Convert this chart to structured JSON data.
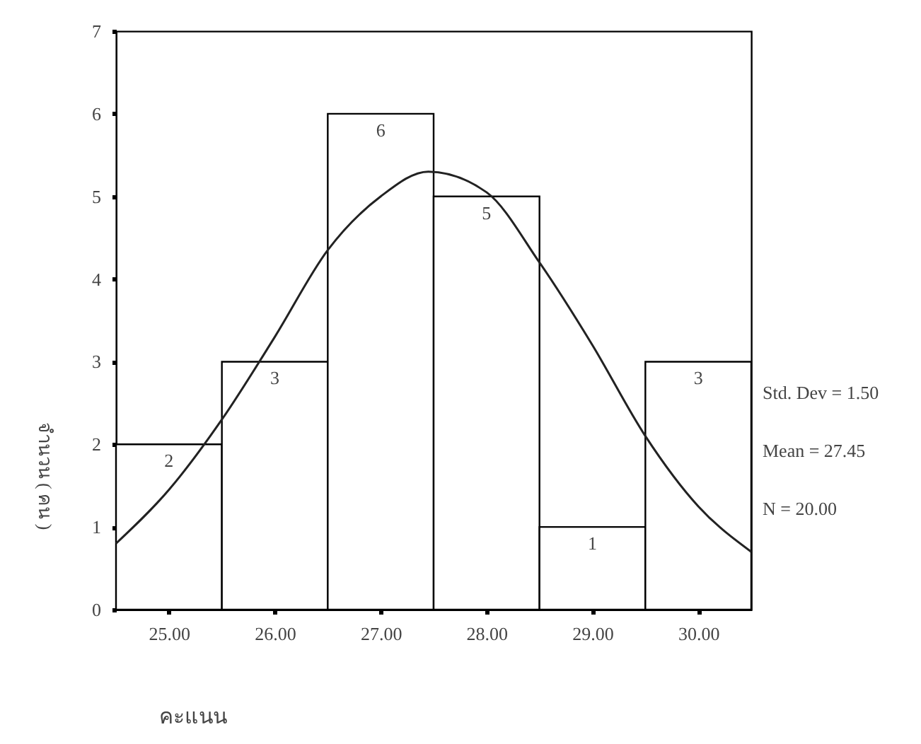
{
  "chart_data": {
    "type": "histogram",
    "xlabel": "คะแนน",
    "ylabel": "จำนวน ( คน )",
    "bins": [
      24.5,
      25.5,
      26.5,
      27.5,
      28.5,
      29.5,
      30.5
    ],
    "values": [
      2,
      3,
      6,
      5,
      1,
      3
    ],
    "value_labels": [
      "2",
      "3",
      "6",
      "5",
      "1",
      "3"
    ],
    "series": [
      {
        "type": "line",
        "x": [
          24.5,
          25,
          25.5,
          26,
          26.5,
          27,
          27.45,
          28,
          28.5,
          29,
          29.5,
          30,
          30.5
        ],
        "values": [
          0.8,
          1.45,
          2.3,
          3.3,
          4.35,
          5.0,
          5.3,
          5.05,
          4.2,
          3.2,
          2.1,
          1.25,
          0.7
        ]
      }
    ],
    "xlim": [
      24.5,
      30.5
    ],
    "xticks": [
      {
        "value": 25,
        "label": "25.00"
      },
      {
        "value": 26,
        "label": "26.00"
      },
      {
        "value": 27,
        "label": "27.00"
      },
      {
        "value": 28,
        "label": "28.00"
      },
      {
        "value": 29,
        "label": "29.00"
      },
      {
        "value": 30,
        "label": "30.00"
      }
    ],
    "ylim": [
      0,
      7
    ],
    "yticks": [
      0,
      1,
      2,
      3,
      4,
      5,
      6,
      7
    ],
    "annotations": [
      "Std. Dev = 1.50",
      "Mean = 27.45",
      "N = 20.00"
    ]
  }
}
